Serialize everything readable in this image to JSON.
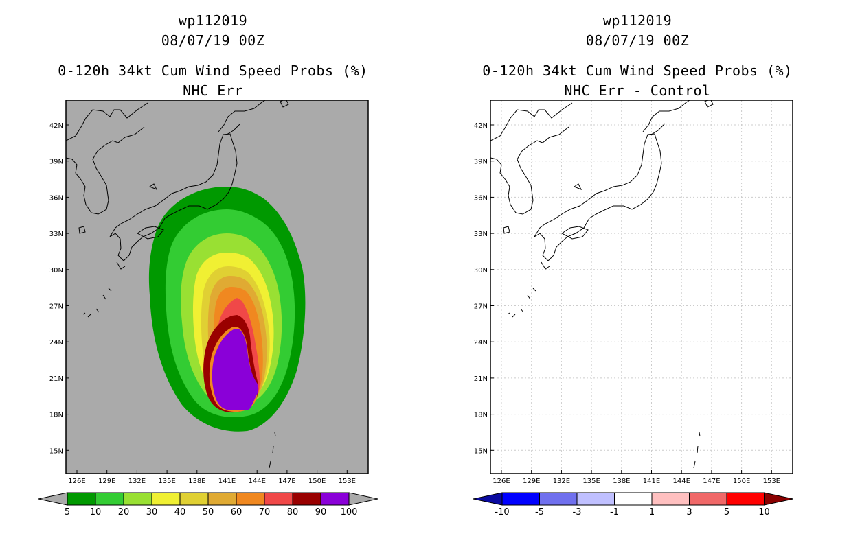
{
  "colors": {
    "background": "#ffffff",
    "ocean_left": "#aaaaaa",
    "land_outline": "#000000",
    "grid": "#cccccc",
    "prob_levels": [
      "#009900",
      "#33cc33",
      "#99e033",
      "#f0f033",
      "#e0d033",
      "#e0aa33",
      "#f08820",
      "#f04848",
      "#990000",
      "#8a00d8"
    ],
    "diff_levels": [
      "#0a0aa0",
      "#0000ff",
      "#7070ee",
      "#c0c0ff",
      "#ffffff",
      "#ffc0c0",
      "#f06868",
      "#ff0000",
      "#8a0000"
    ]
  },
  "left_panel": {
    "storm_id": "wp112019",
    "datetime": "08/07/19 00Z",
    "title": "0-120h 34kt Cum Wind Speed Probs (%)",
    "subtitle": "NHC Err",
    "legend_labels": [
      "5",
      "10",
      "20",
      "30",
      "40",
      "50",
      "60",
      "70",
      "80",
      "90",
      "100"
    ]
  },
  "right_panel": {
    "storm_id": "wp112019",
    "datetime": "08/07/19 00Z",
    "title": "0-120h 34kt Cum Wind Speed Probs (%)",
    "subtitle": "NHC Err - Control",
    "legend_labels": [
      "-10",
      "-5",
      "-3",
      "-1",
      "1",
      "3",
      "5",
      "10"
    ]
  },
  "map": {
    "lat_labels": [
      "42N",
      "39N",
      "36N",
      "33N",
      "30N",
      "27N",
      "24N",
      "21N",
      "18N",
      "15N"
    ],
    "lon_labels": [
      "126E",
      "129E",
      "132E",
      "135E",
      "138E",
      "141E",
      "144E",
      "147E",
      "150E",
      "153E"
    ]
  }
}
